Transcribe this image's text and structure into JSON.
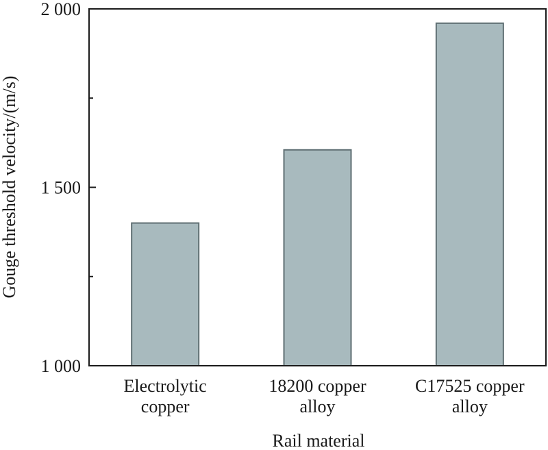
{
  "chart_data": {
    "type": "bar",
    "categories": [
      [
        "Electrolytic",
        "copper"
      ],
      [
        "18200 copper",
        "alloy"
      ],
      [
        "C17525 copper",
        "alloy"
      ]
    ],
    "values": [
      1400,
      1605,
      1960
    ],
    "xlabel": "Rail material",
    "ylabel": "Gouge threshold velocity/(m/s)",
    "ylim": [
      1000,
      2000
    ],
    "yticks_major": [
      1000,
      1500,
      2000
    ],
    "ytick_labels": [
      "1 000",
      "1 500",
      "2 000"
    ],
    "yticks_minor": [
      1250,
      1750
    ],
    "grid": false,
    "bar_color": "#a8babe",
    "bar_edge_color": "#5f6f73",
    "axis_color": "#1a1a1a"
  }
}
